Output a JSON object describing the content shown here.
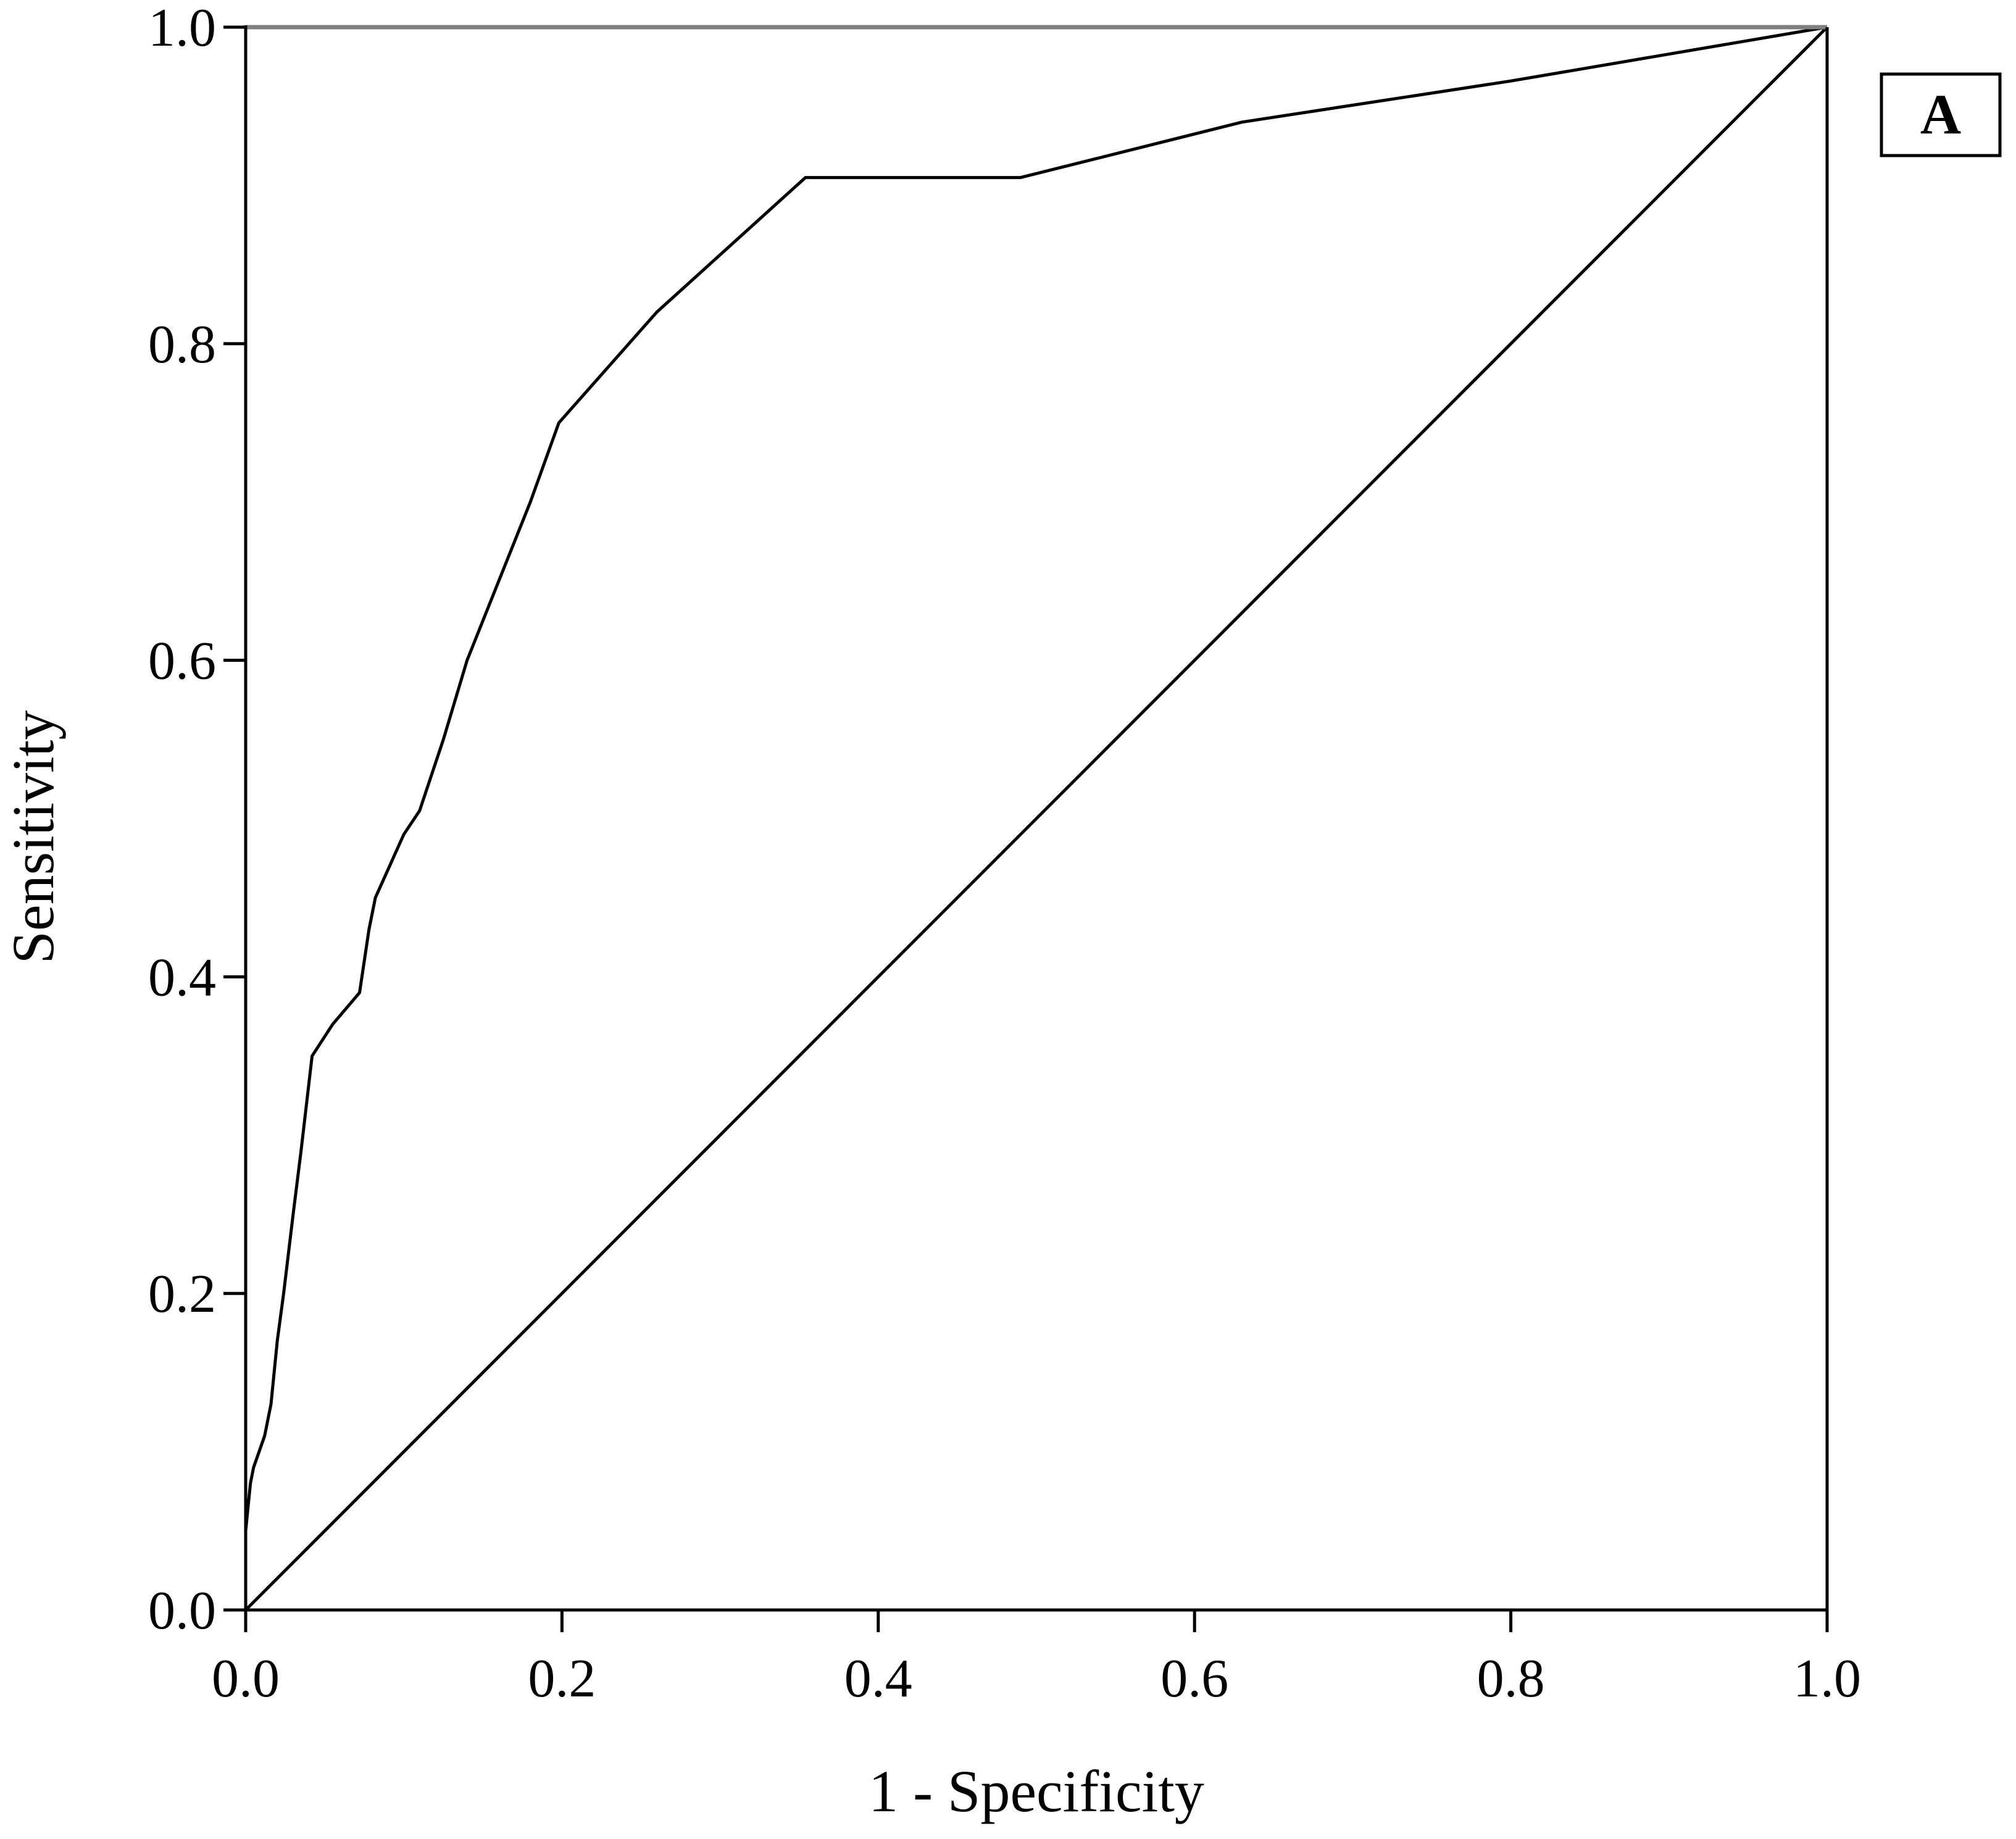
{
  "chart_data": {
    "type": "line",
    "title": "",
    "xlabel": "1 - Specificity",
    "ylabel": "Sensitivity",
    "xlim": [
      0.0,
      1.0
    ],
    "ylim": [
      0.0,
      1.0
    ],
    "x_ticks": [
      "0.0",
      "0.2",
      "0.4",
      "0.6",
      "0.8",
      "1.0"
    ],
    "y_ticks": [
      "0.0",
      "0.2",
      "0.4",
      "0.6",
      "0.8",
      "1.0"
    ],
    "grid": false,
    "legend": "none",
    "panel_label": "A",
    "colors": {
      "line": "#000000",
      "axis": "#000000",
      "top_border": "#808080",
      "ylabel": "#8a4a10",
      "background": "#ffffff"
    },
    "series": [
      {
        "role": "roc",
        "x": [
          0.0,
          0.0,
          0.003,
          0.005,
          0.012,
          0.016,
          0.02,
          0.024,
          0.03,
          0.035,
          0.042,
          0.055,
          0.072,
          0.078,
          0.082,
          0.1,
          0.11,
          0.125,
          0.14,
          0.16,
          0.18,
          0.198,
          0.26,
          0.354,
          0.49,
          0.63,
          0.8,
          1.0
        ],
        "y": [
          0.0,
          0.05,
          0.08,
          0.09,
          0.11,
          0.13,
          0.17,
          0.2,
          0.25,
          0.29,
          0.35,
          0.37,
          0.39,
          0.43,
          0.45,
          0.49,
          0.505,
          0.55,
          0.6,
          0.65,
          0.7,
          0.75,
          0.82,
          0.905,
          0.905,
          0.94,
          0.966,
          1.0
        ]
      },
      {
        "role": "reference",
        "x": [
          0.0,
          1.0
        ],
        "y": [
          0.0,
          1.0
        ]
      }
    ]
  }
}
